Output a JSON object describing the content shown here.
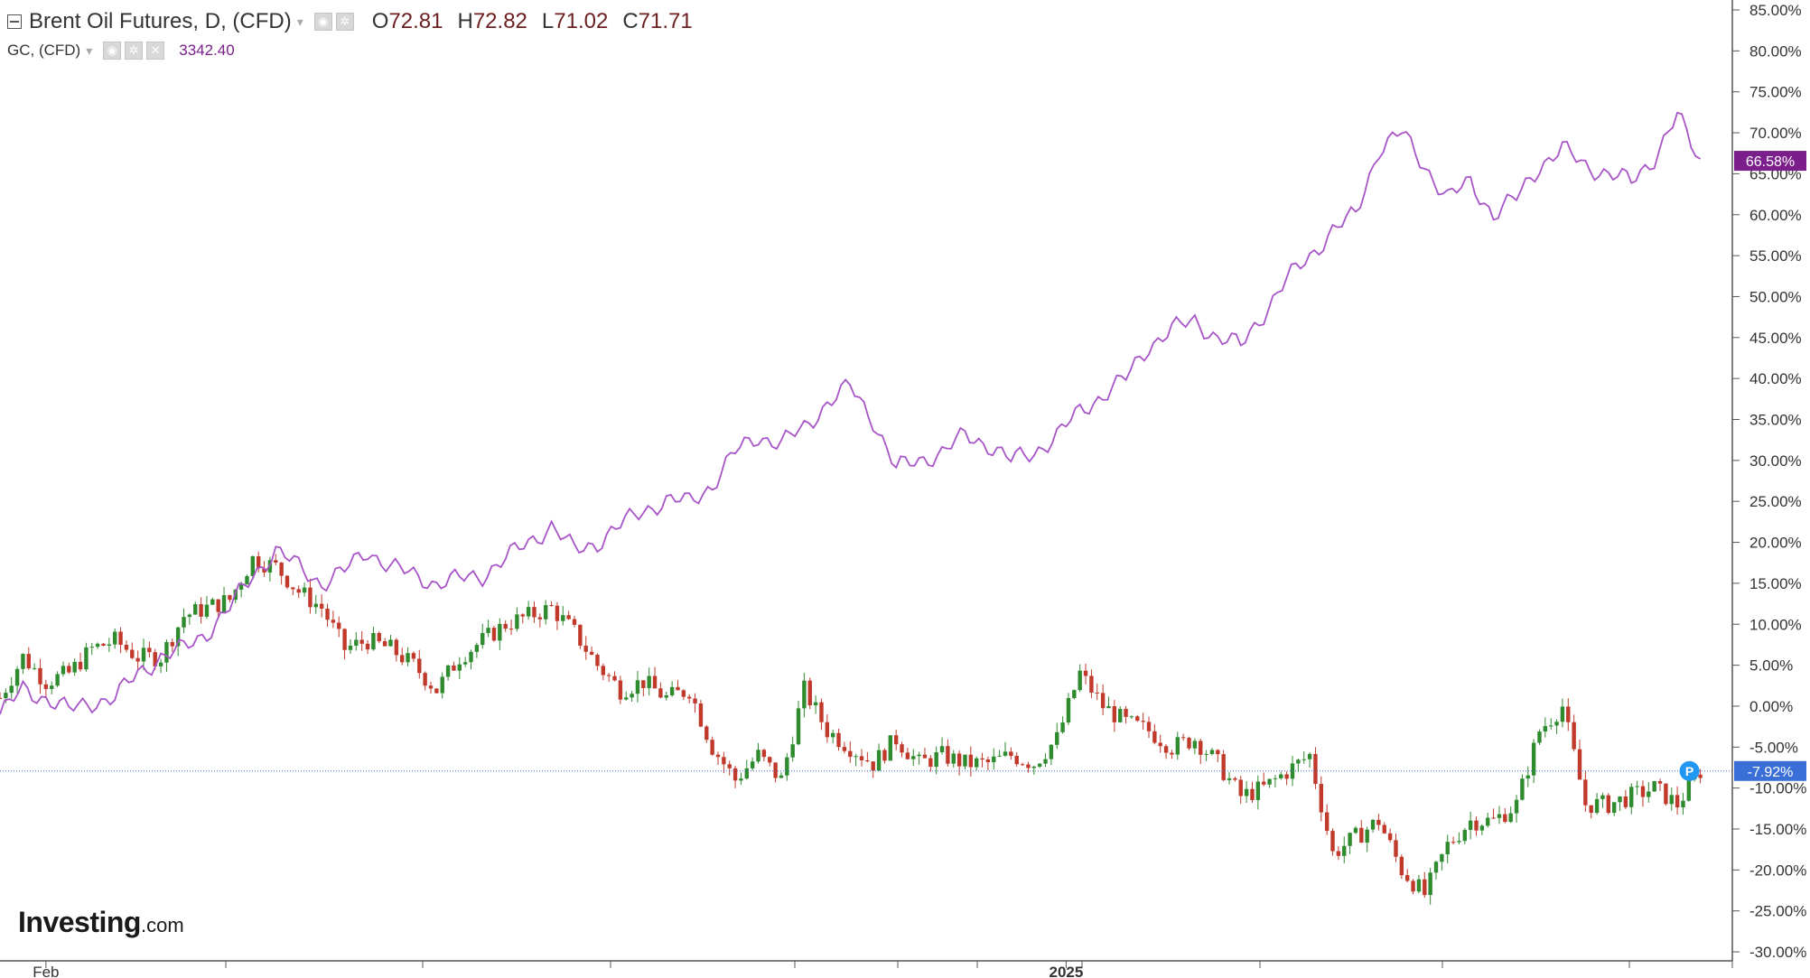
{
  "legend": {
    "main_title": "Brent Oil Futures, D, (CFD)",
    "ohlc": [
      {
        "key": "O",
        "value": "72.81"
      },
      {
        "key": "H",
        "value": "72.82"
      },
      {
        "key": "L",
        "value": "71.02"
      },
      {
        "key": "C",
        "value": "71.71"
      }
    ],
    "sub_title": "GC, (CFD)",
    "sub_value": "3342.40"
  },
  "logo": {
    "main": "Investing",
    "suffix": ".com"
  },
  "colors": {
    "gold_line": "#a855c8",
    "gold_tag": "#7b1f8c",
    "up_candle": "#2e8b2e",
    "down_candle": "#c0392b",
    "price_line": "#3b6fd8",
    "price_tag": "#3b6fd8",
    "p_badge": "#2196f3"
  },
  "chart_data": {
    "type": "line",
    "ylim": [
      -30,
      85
    ],
    "yticks": [
      85,
      80,
      75,
      70,
      65,
      60,
      55,
      50,
      45,
      40,
      35,
      30,
      25,
      20,
      15,
      10,
      5,
      0,
      -5,
      -10,
      -15,
      -20,
      -25,
      -30
    ],
    "ytick_labels": [
      "85.00%",
      "80.00%",
      "75.00%",
      "70.00%",
      "65.00%",
      "60.00%",
      "55.00%",
      "50.00%",
      "45.00%",
      "40.00%",
      "35.00%",
      "30.00%",
      "25.00%",
      "20.00%",
      "15.00%",
      "10.00%",
      "5.00%",
      "0.00%",
      "-5.00%",
      "-10.00%",
      "-15.00%",
      "-20.00%",
      "-25.00%",
      "-30.00%"
    ],
    "xlim": [
      0,
      1500
    ],
    "xtick_labels": [
      {
        "label": "Feb",
        "x": 40
      },
      {
        "label": "2025",
        "x": 928
      }
    ],
    "gold_series": {
      "name": "GC, (CFD)",
      "last_label": "66.58%",
      "x": [
        0,
        20,
        40,
        60,
        80,
        100,
        120,
        140,
        160,
        180,
        200,
        220,
        240,
        260,
        280,
        300,
        320,
        340,
        360,
        380,
        400,
        420,
        440,
        460,
        480,
        500,
        520,
        540,
        560,
        580,
        600,
        620,
        640,
        660,
        680,
        700,
        720,
        740,
        760,
        780,
        800,
        820,
        840,
        860,
        880,
        900,
        920,
        940,
        960,
        980,
        1000,
        1020,
        1040,
        1060,
        1080,
        1100,
        1120,
        1140,
        1160,
        1180,
        1200,
        1220,
        1240,
        1260,
        1280,
        1300,
        1320,
        1340,
        1360,
        1380,
        1400,
        1420,
        1440,
        1460,
        1480
      ],
      "y": [
        -1,
        2,
        1,
        -0.5,
        0.5,
        1,
        4,
        6,
        7,
        9,
        12,
        16,
        19,
        17,
        15,
        16.5,
        19,
        17,
        16,
        15,
        15.5,
        16,
        18,
        20,
        22,
        19,
        20,
        22,
        24,
        25,
        25,
        27,
        31,
        33,
        32,
        34,
        37,
        39,
        35,
        29,
        30,
        31,
        33,
        32,
        30,
        31,
        33,
        36,
        38,
        40,
        44,
        46,
        47,
        45,
        44,
        48,
        52,
        55,
        58,
        60,
        68,
        70,
        66,
        62,
        64,
        60,
        62,
        66,
        68,
        66,
        65,
        64,
        67,
        72,
        66.58
      ]
    },
    "brent_series": {
      "name": "Brent Oil Futures, D, (CFD)",
      "last_label": "-7.92%",
      "last_value": -7.92,
      "x": [
        0,
        20,
        40,
        60,
        80,
        100,
        120,
        140,
        160,
        180,
        200,
        220,
        240,
        260,
        280,
        300,
        320,
        340,
        360,
        380,
        400,
        420,
        440,
        460,
        480,
        500,
        520,
        540,
        560,
        580,
        600,
        620,
        640,
        660,
        680,
        700,
        720,
        740,
        760,
        780,
        800,
        820,
        840,
        860,
        880,
        900,
        920,
        940,
        960,
        980,
        1000,
        1020,
        1040,
        1060,
        1080,
        1100,
        1120,
        1140,
        1160,
        1180,
        1200,
        1220,
        1240,
        1260,
        1280,
        1300,
        1320,
        1340,
        1360,
        1380,
        1400,
        1420,
        1440,
        1460,
        1480
      ],
      "y": [
        1,
        6,
        3,
        4,
        7,
        8,
        6,
        6,
        11,
        12,
        13,
        18,
        17,
        14,
        12,
        7,
        8,
        7,
        5,
        2,
        6,
        8,
        10,
        11,
        12,
        9,
        5,
        2,
        3,
        1,
        2,
        -5,
        -9,
        -6,
        -9,
        2,
        -3,
        -5,
        -7,
        -4,
        -7,
        -6,
        -7,
        -7,
        -6,
        -7,
        -4,
        4,
        0,
        -2,
        -3,
        -5,
        -4,
        -7,
        -11,
        -10,
        -8,
        -6,
        -18,
        -16,
        -14,
        -20,
        -23,
        -17,
        -14,
        -14,
        -12,
        -3,
        0,
        -12,
        -12,
        -11,
        -10,
        -12,
        -7.92
      ]
    }
  }
}
